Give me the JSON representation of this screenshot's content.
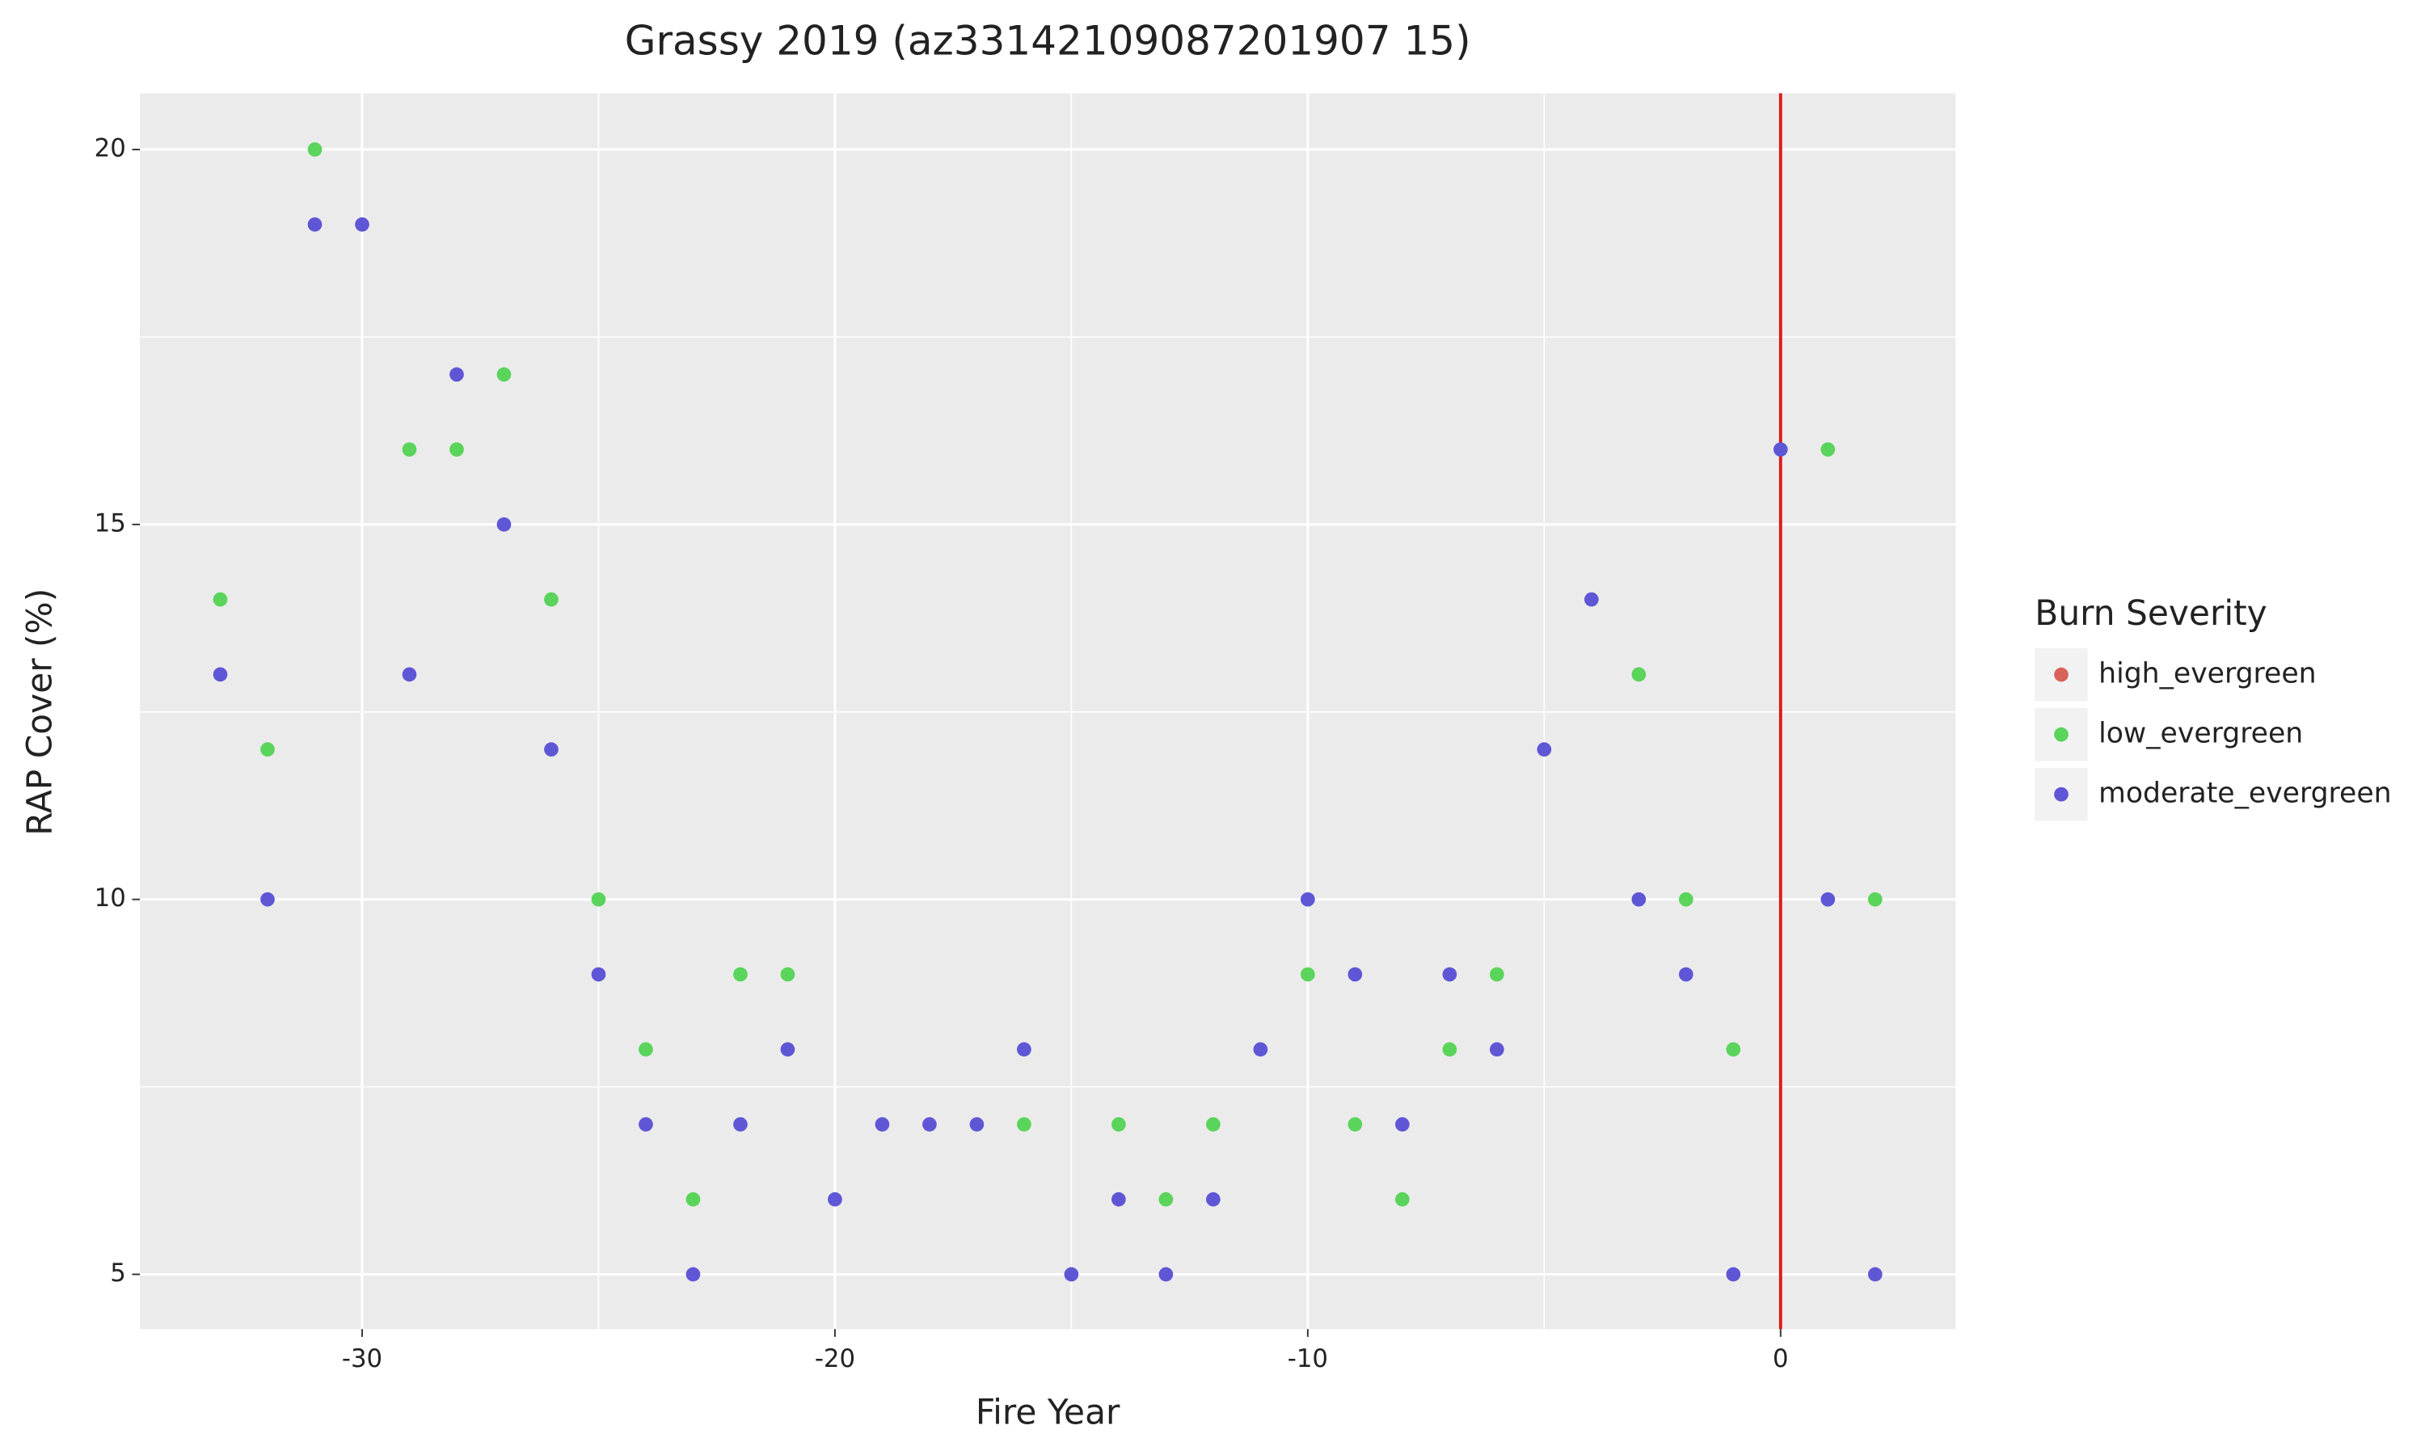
{
  "chart_data": {
    "type": "scatter",
    "title": "Grassy 2019 (az33142109087201907 15)",
    "x_label": "Fire Year",
    "y_label": "RAP Cover (%)",
    "legend_title": "Burn Severity",
    "legend_position": "right",
    "grid": true,
    "xlim": [
      -34.7,
      3.7
    ],
    "ylim": [
      4.27,
      20.75
    ],
    "xticks": [
      -30,
      -20,
      -10,
      0
    ],
    "yticks": [
      5,
      10,
      15,
      20
    ],
    "x_minor_ticks": [
      -25,
      -15,
      -5
    ],
    "y_minor_ticks": [
      7.5,
      12.5,
      17.5
    ],
    "vline": {
      "x": 0,
      "color": "#e0171b"
    },
    "series": [
      {
        "name": "high_evergreen",
        "color": "#d9625a",
        "x": [],
        "values": []
      },
      {
        "name": "low_evergreen",
        "color": "#5ad45a",
        "x": [
          -33,
          -32,
          -31,
          -29,
          -28,
          -27,
          -26,
          -25,
          -24,
          -23,
          -22,
          -21,
          -16,
          -14,
          -13,
          -12,
          -10,
          -9,
          -8,
          -7,
          -6,
          -3,
          -2,
          -1,
          1,
          2
        ],
        "values": [
          14,
          12,
          20,
          16,
          16,
          17,
          14,
          10,
          8,
          6,
          9,
          9,
          7,
          7,
          6,
          7,
          9,
          7,
          6,
          8,
          9,
          13,
          10,
          8,
          16,
          10
        ]
      },
      {
        "name": "moderate_evergreen",
        "color": "#5f56d6",
        "x": [
          -33,
          -32,
          -31,
          -30,
          -29,
          -28,
          -27,
          -26,
          -25,
          -24,
          -23,
          -22,
          -21,
          -20,
          -19,
          -18,
          -17,
          -16,
          -15,
          -14,
          -13,
          -12,
          -11,
          -10,
          -9,
          -8,
          -7,
          -6,
          -5,
          -4,
          -3,
          -2,
          -1,
          0,
          1,
          2
        ],
        "values": [
          13,
          10,
          19,
          19,
          13,
          17,
          15,
          12,
          9,
          7,
          5,
          7,
          8,
          6,
          7,
          7,
          7,
          8,
          5,
          6,
          5,
          6,
          8,
          10,
          9,
          7,
          9,
          8,
          12,
          14,
          10,
          9,
          5,
          16,
          10,
          5
        ]
      }
    ]
  }
}
